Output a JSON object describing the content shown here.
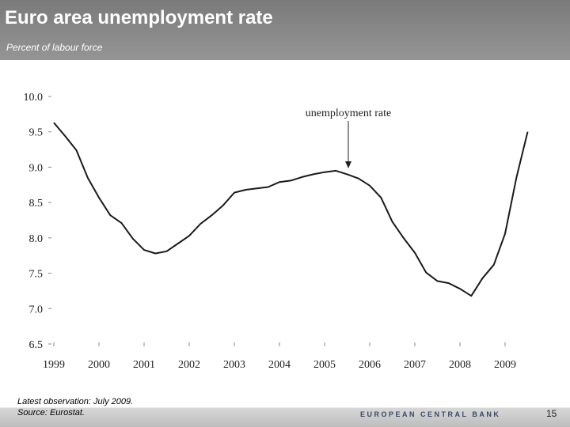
{
  "header": {
    "title": "Euro area unemployment rate",
    "subtitle": "Percent of labour force"
  },
  "chart_data": {
    "type": "line",
    "series": [
      {
        "name": "unemployment rate",
        "color": "#1a1a1a",
        "x": [
          1999.0,
          1999.25,
          1999.5,
          1999.75,
          2000.0,
          2000.25,
          2000.5,
          2000.75,
          2001.0,
          2001.25,
          2001.5,
          2001.75,
          2002.0,
          2002.25,
          2002.5,
          2002.75,
          2003.0,
          2003.25,
          2003.5,
          2003.75,
          2004.0,
          2004.25,
          2004.5,
          2004.75,
          2005.0,
          2005.25,
          2005.5,
          2005.75,
          2006.0,
          2006.25,
          2006.5,
          2006.75,
          2007.0,
          2007.25,
          2007.5,
          2007.75,
          2008.0,
          2008.25,
          2008.5,
          2008.75,
          2009.0,
          2009.25,
          2009.5
        ],
        "values": [
          9.63,
          9.44,
          9.24,
          8.85,
          8.57,
          8.32,
          8.21,
          7.99,
          7.83,
          7.78,
          7.81,
          7.92,
          8.03,
          8.2,
          8.32,
          8.46,
          8.64,
          8.68,
          8.7,
          8.72,
          8.79,
          8.81,
          8.86,
          8.9,
          8.93,
          8.95,
          8.9,
          8.84,
          8.74,
          8.57,
          8.23,
          8.0,
          7.79,
          7.51,
          7.39,
          7.36,
          7.28,
          7.18,
          7.43,
          7.62,
          8.06,
          8.85,
          9.5
        ]
      }
    ],
    "annotation": "unemployment rate",
    "xlim": [
      1999,
      2009.6
    ],
    "xticks": [
      1999,
      2000,
      2001,
      2002,
      2003,
      2004,
      2005,
      2006,
      2007,
      2008,
      2009
    ],
    "ylim": [
      6.5,
      10
    ],
    "yticks": [
      {
        "value": 10,
        "label": "10.0"
      },
      9.5,
      {
        "value": 9,
        "label": "9.0"
      },
      8.5,
      {
        "value": 8,
        "label": "8.0"
      },
      7.5,
      {
        "value": 7,
        "label": "7.0"
      },
      6.5
    ]
  },
  "footer": {
    "note": "Latest observation: July 2009.",
    "source": "Source: Eurostat.",
    "brand": "EUROPEAN CENTRAL BANK",
    "page": "15"
  }
}
